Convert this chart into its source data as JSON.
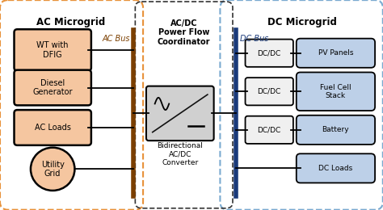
{
  "title_ac": "AC Microgrid",
  "title_dc": "DC Microgrid",
  "ac_bus_label": "AC Bus",
  "dc_bus_label": "DC Bus",
  "coordinator_label": "AC/DC\nPower Flow\nCoordinator",
  "converter_label": "Bidirectional\nAC/DC\nConverter",
  "ac_components": [
    "WT with\nDFIG",
    "Diesel\nGenerator",
    "AC Loads",
    "Utility\nGrid"
  ],
  "dc_right_components": [
    "PV Panels",
    "Fuel Cell\nStack",
    "Battery",
    "DC Loads"
  ],
  "color_ac_box_edge": "#000000",
  "color_ac_fill": "#F5C6A0",
  "color_dc_box_edge": "#000000",
  "color_dc_fill": "#BDD0E8",
  "color_dcdc_fill": "#F0F0F0",
  "color_dcdc_edge": "#000000",
  "color_converter_fill": "#D0D0D0",
  "color_converter_edge": "#000000",
  "color_ac_bus": "#7B3F00",
  "color_dc_bus": "#1A3A7A",
  "color_ac_border": "#E8923A",
  "color_dc_border": "#7AAAD0",
  "color_coord_border": "#333333",
  "fig_bg": "#FFFFFF"
}
